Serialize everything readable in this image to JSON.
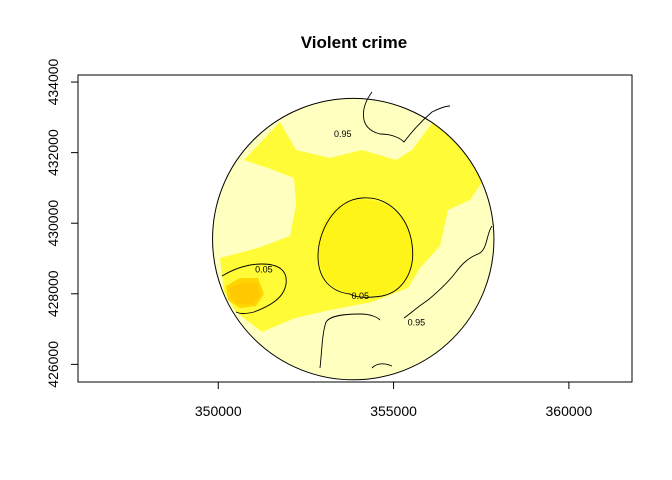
{
  "chart_data": {
    "type": "heatmap",
    "title": "Violent crime",
    "xlabel": "",
    "ylabel": "",
    "xlim": [
      346000,
      361800
    ],
    "ylim": [
      425500,
      434200
    ],
    "x_ticks": [
      350000,
      355000,
      360000
    ],
    "x_tick_labels": [
      "350000",
      "355000",
      "360000"
    ],
    "y_ticks": [
      426000,
      428000,
      430000,
      432000,
      434000
    ],
    "y_tick_labels": [
      "426000",
      "428000",
      "430000",
      "432000",
      "434000"
    ],
    "study_area": {
      "center": [
        353850,
        429550
      ],
      "radius": 4000
    },
    "colors": {
      "background": "#ffffff",
      "low": "#ffffc0",
      "mid": "#fffb36",
      "high_mid": "#ffee00",
      "high": "#ffc800",
      "line": "#000000"
    },
    "contour_levels": [
      0.05,
      0.95
    ],
    "contour_labels": [
      {
        "text": "0.95",
        "x": 353550,
        "y": 432450
      },
      {
        "text": "0.05",
        "x": 351300,
        "y": 428600
      },
      {
        "text": "0.05",
        "x": 354050,
        "y": 427850
      },
      {
        "text": "0.95",
        "x": 355650,
        "y": 427100
      }
    ],
    "grid": false,
    "legend": "none"
  }
}
